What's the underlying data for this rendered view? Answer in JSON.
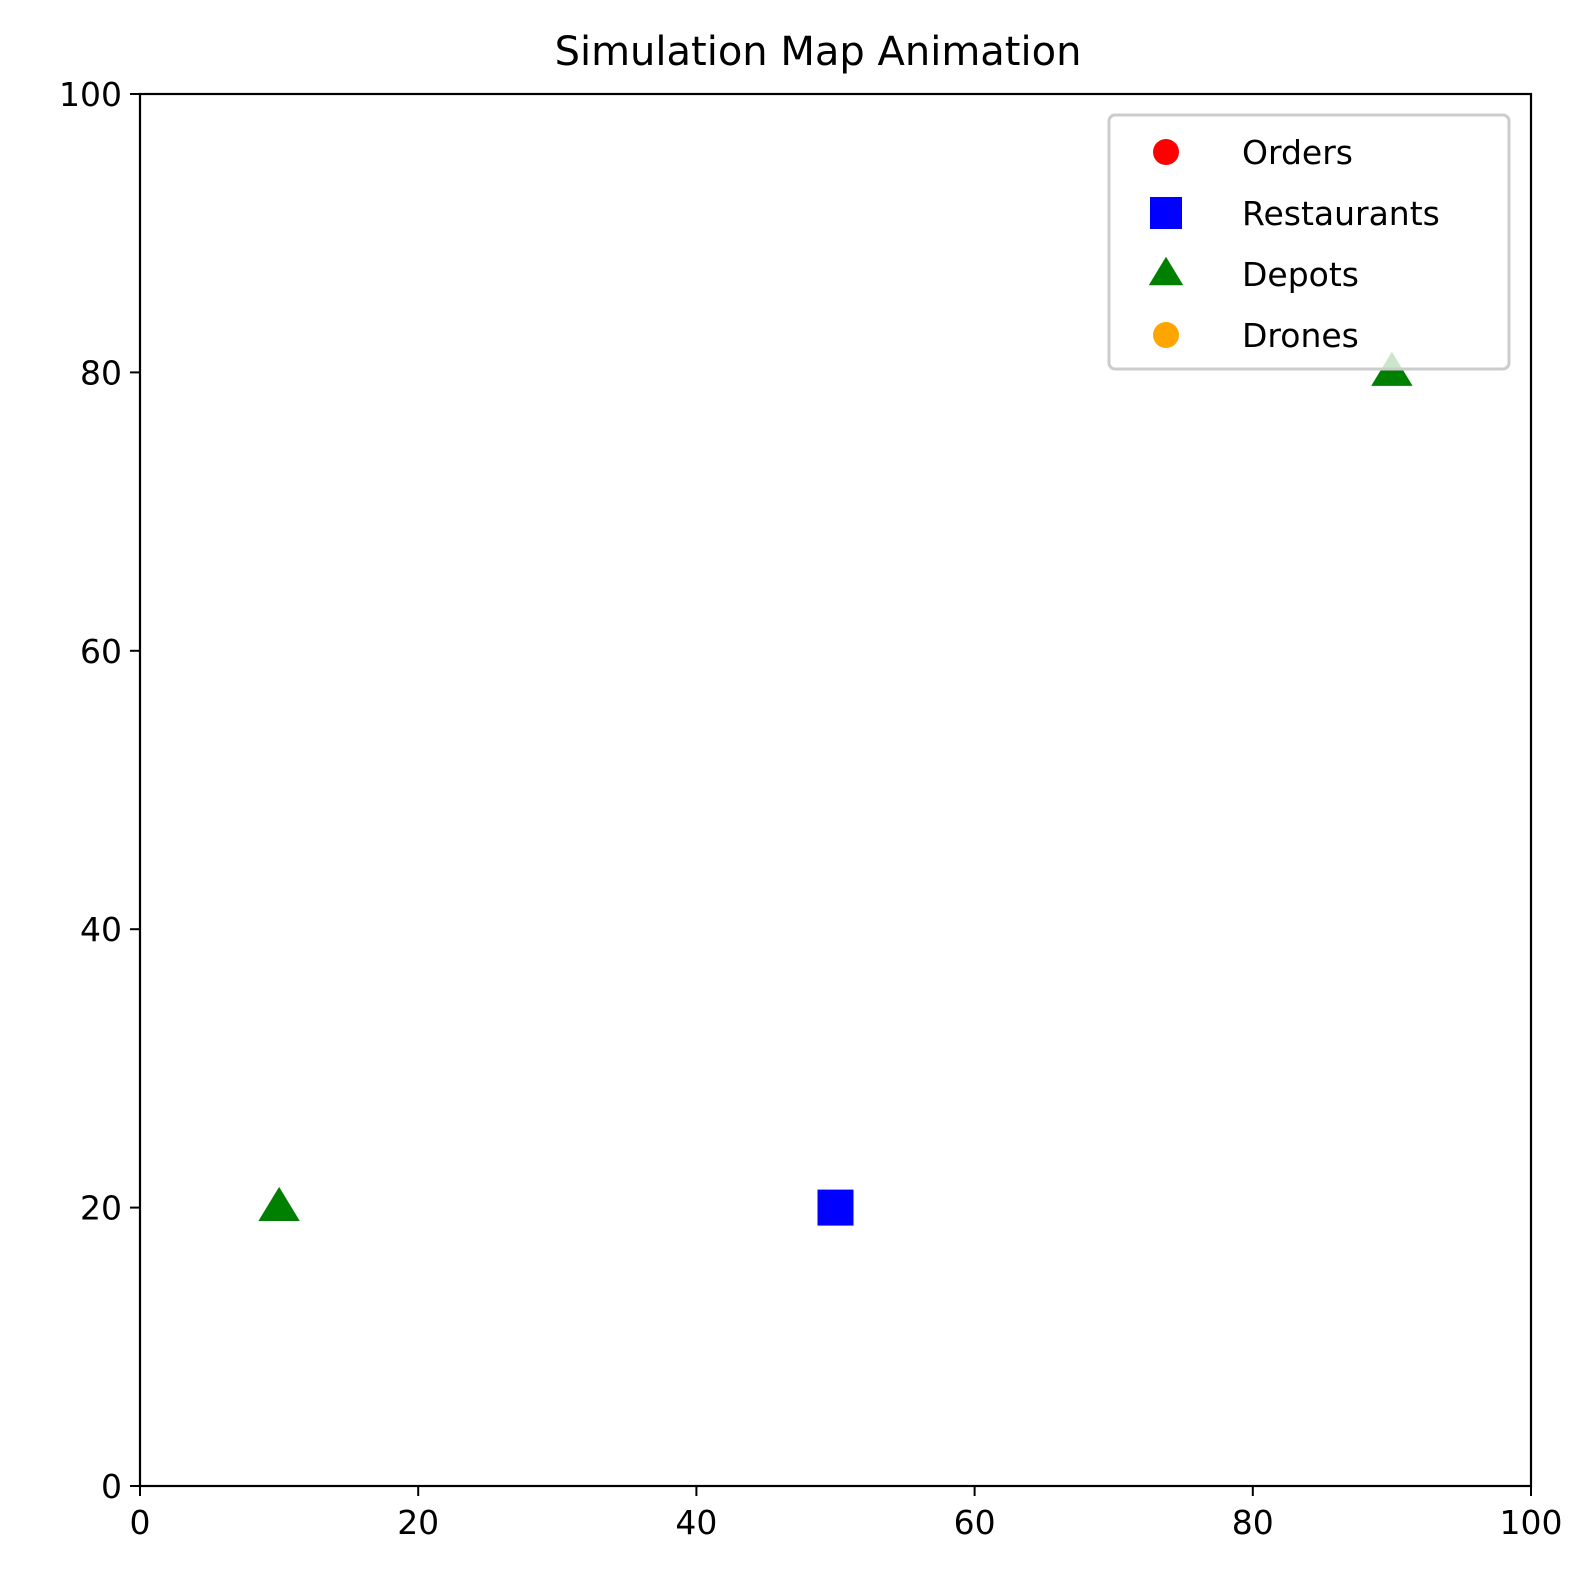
{
  "chart_data": {
    "type": "scatter",
    "title": "Simulation Map Animation",
    "xlabel": "",
    "ylabel": "",
    "xlim": [
      0,
      100
    ],
    "ylim": [
      0,
      100
    ],
    "x_ticks": [
      "0",
      "20",
      "40",
      "60",
      "80",
      "100"
    ],
    "y_ticks": [
      "0",
      "20",
      "40",
      "60",
      "80",
      "100"
    ],
    "grid": false,
    "legend_position": "top-right",
    "series": [
      {
        "name": "Orders",
        "marker": "circle",
        "color": "#ff0000",
        "points": []
      },
      {
        "name": "Restaurants",
        "marker": "square",
        "color": "#0000ff",
        "points": [
          [
            50,
            20
          ]
        ]
      },
      {
        "name": "Depots",
        "marker": "triangle",
        "color": "#008000",
        "points": [
          [
            10,
            20
          ],
          [
            90,
            80
          ]
        ]
      },
      {
        "name": "Drones",
        "marker": "circle",
        "color": "#ffa500",
        "points": []
      }
    ]
  }
}
